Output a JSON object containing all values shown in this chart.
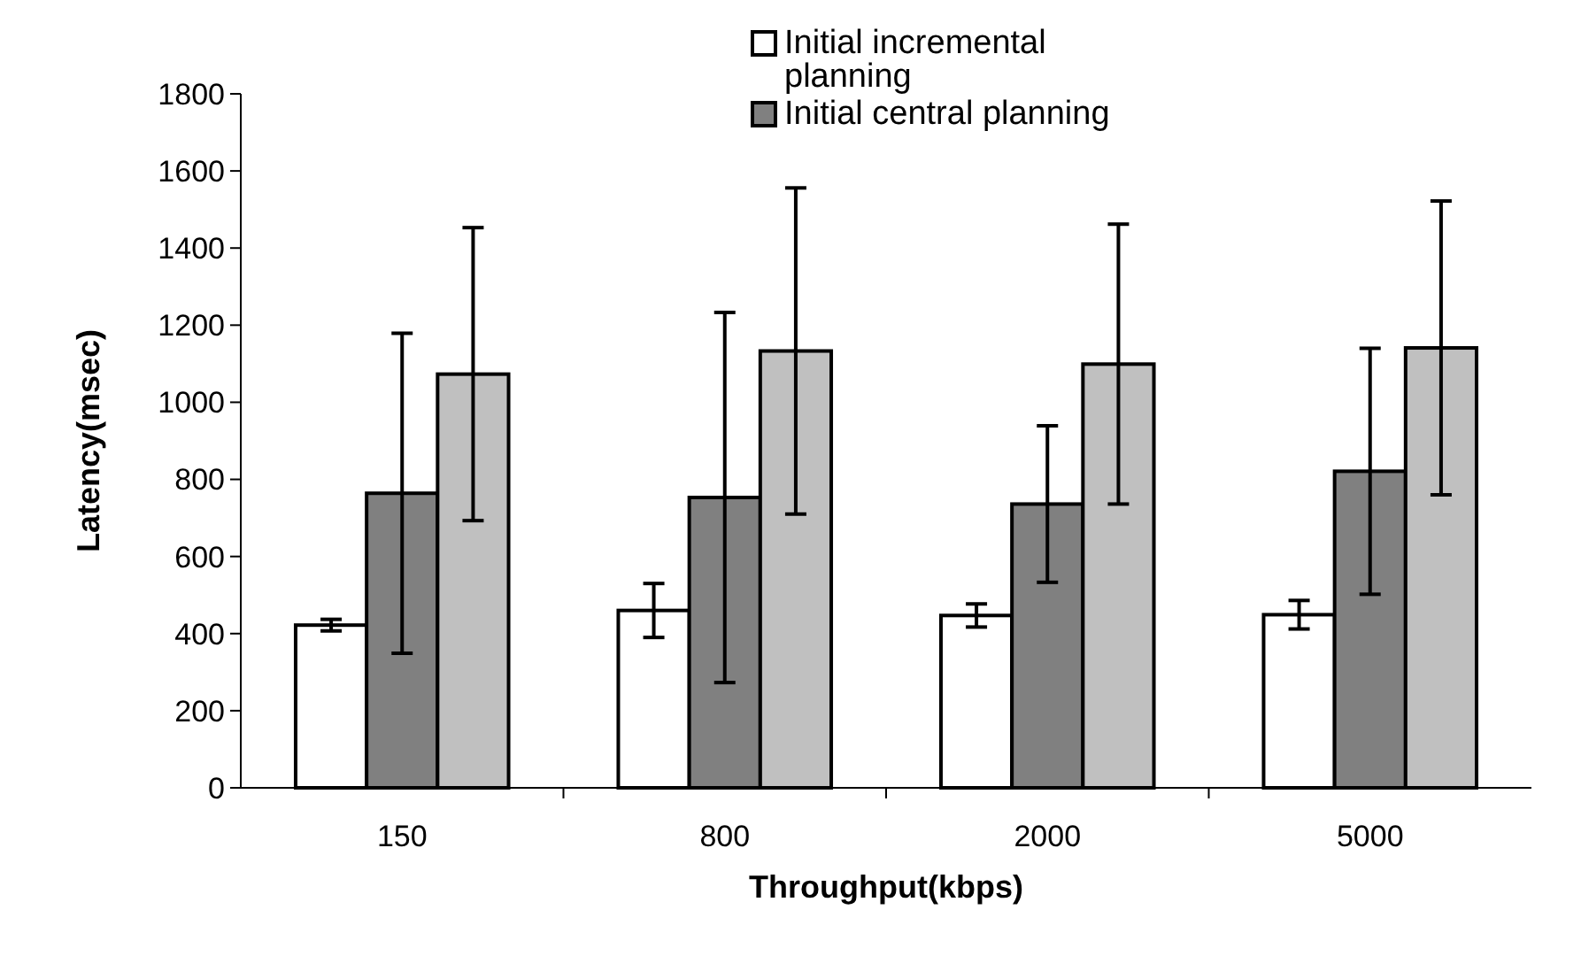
{
  "chart_data": {
    "type": "bar",
    "xlabel": "Throughput(kbps)",
    "ylabel": "Latency(msec)",
    "categories": [
      "150",
      "800",
      "2000",
      "5000"
    ],
    "series": [
      {
        "name": "Initial incremental planning",
        "color": "#ffffff",
        "values": [
          422,
          460,
          447,
          449
        ],
        "errors": [
          15,
          70,
          30,
          37
        ]
      },
      {
        "name": "Initial central planning",
        "color": "#808080",
        "values": [
          764,
          753,
          736,
          821
        ],
        "errors": [
          415,
          480,
          203,
          319
        ]
      },
      {
        "color": "#c0c0c0",
        "values": [
          1073,
          1133,
          1099,
          1141
        ],
        "errors": [
          380,
          423,
          363,
          381
        ]
      }
    ],
    "ylim": [
      0,
      1800
    ],
    "yticks": [
      0,
      200,
      400,
      600,
      800,
      1000,
      1200,
      1400,
      1600,
      1800
    ],
    "grid": false,
    "legend": "top right"
  }
}
